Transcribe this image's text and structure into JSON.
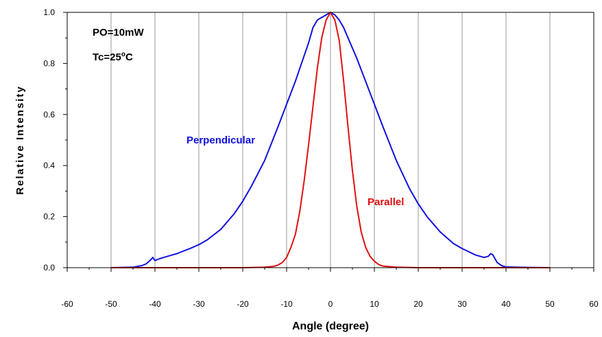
{
  "chart_data": {
    "type": "line",
    "title": "",
    "xlabel": "Angle (degree)",
    "ylabel": "Relative Intensity",
    "xlim": [
      -60,
      60
    ],
    "ylim": [
      0,
      1.0
    ],
    "x_ticks": [
      -60,
      -50,
      -40,
      -30,
      -20,
      -10,
      0,
      10,
      20,
      30,
      40,
      50,
      60
    ],
    "y_ticks": [
      "0.0",
      "0.2",
      "0.4",
      "0.6",
      "0.8",
      "1.0"
    ],
    "grid": "vertical",
    "annotations": {
      "po": "PO=10mW",
      "tc_prefix": "Tc=25",
      "tc_sup": "o",
      "tc_suffix": "C"
    },
    "series": [
      {
        "name": "Perpendicular",
        "color": "#1010e0",
        "x": [
          -50,
          -45,
          -43,
          -42,
          -41,
          -40.5,
          -40,
          -39,
          -38,
          -35,
          -32,
          -30,
          -28,
          -25,
          -22,
          -20,
          -18,
          -15,
          -12,
          -10,
          -8,
          -6,
          -5,
          -4,
          -3,
          -2,
          -1,
          0,
          1,
          2,
          3,
          4,
          5,
          6,
          8,
          10,
          12,
          15,
          18,
          20,
          22,
          25,
          28,
          30,
          33,
          35,
          36,
          36.5,
          37,
          37.5,
          38,
          39,
          40,
          45,
          50
        ],
        "y": [
          0.0,
          0.002,
          0.008,
          0.015,
          0.03,
          0.04,
          0.028,
          0.035,
          0.04,
          0.055,
          0.075,
          0.09,
          0.11,
          0.15,
          0.21,
          0.26,
          0.32,
          0.42,
          0.55,
          0.64,
          0.73,
          0.83,
          0.88,
          0.94,
          0.97,
          0.98,
          0.99,
          1.0,
          0.99,
          0.97,
          0.94,
          0.9,
          0.86,
          0.82,
          0.73,
          0.64,
          0.55,
          0.42,
          0.31,
          0.25,
          0.2,
          0.14,
          0.095,
          0.075,
          0.05,
          0.04,
          0.045,
          0.055,
          0.05,
          0.035,
          0.02,
          0.008,
          0.003,
          0.001,
          0.0
        ]
      },
      {
        "name": "Parallel",
        "color": "#e01010",
        "x": [
          -50,
          -20,
          -15,
          -13,
          -12,
          -11,
          -10,
          -9,
          -8,
          -7,
          -6,
          -5,
          -4,
          -3,
          -2,
          -1,
          0,
          1,
          2,
          3,
          4,
          5,
          6,
          7,
          8,
          9,
          10,
          11,
          12,
          15,
          20,
          50
        ],
        "y": [
          0.0,
          0.0,
          0.002,
          0.005,
          0.01,
          0.02,
          0.04,
          0.08,
          0.13,
          0.22,
          0.34,
          0.48,
          0.63,
          0.78,
          0.9,
          0.97,
          1.0,
          0.97,
          0.89,
          0.73,
          0.55,
          0.38,
          0.24,
          0.14,
          0.08,
          0.045,
          0.025,
          0.012,
          0.006,
          0.002,
          0.0,
          0.0
        ]
      }
    ]
  }
}
